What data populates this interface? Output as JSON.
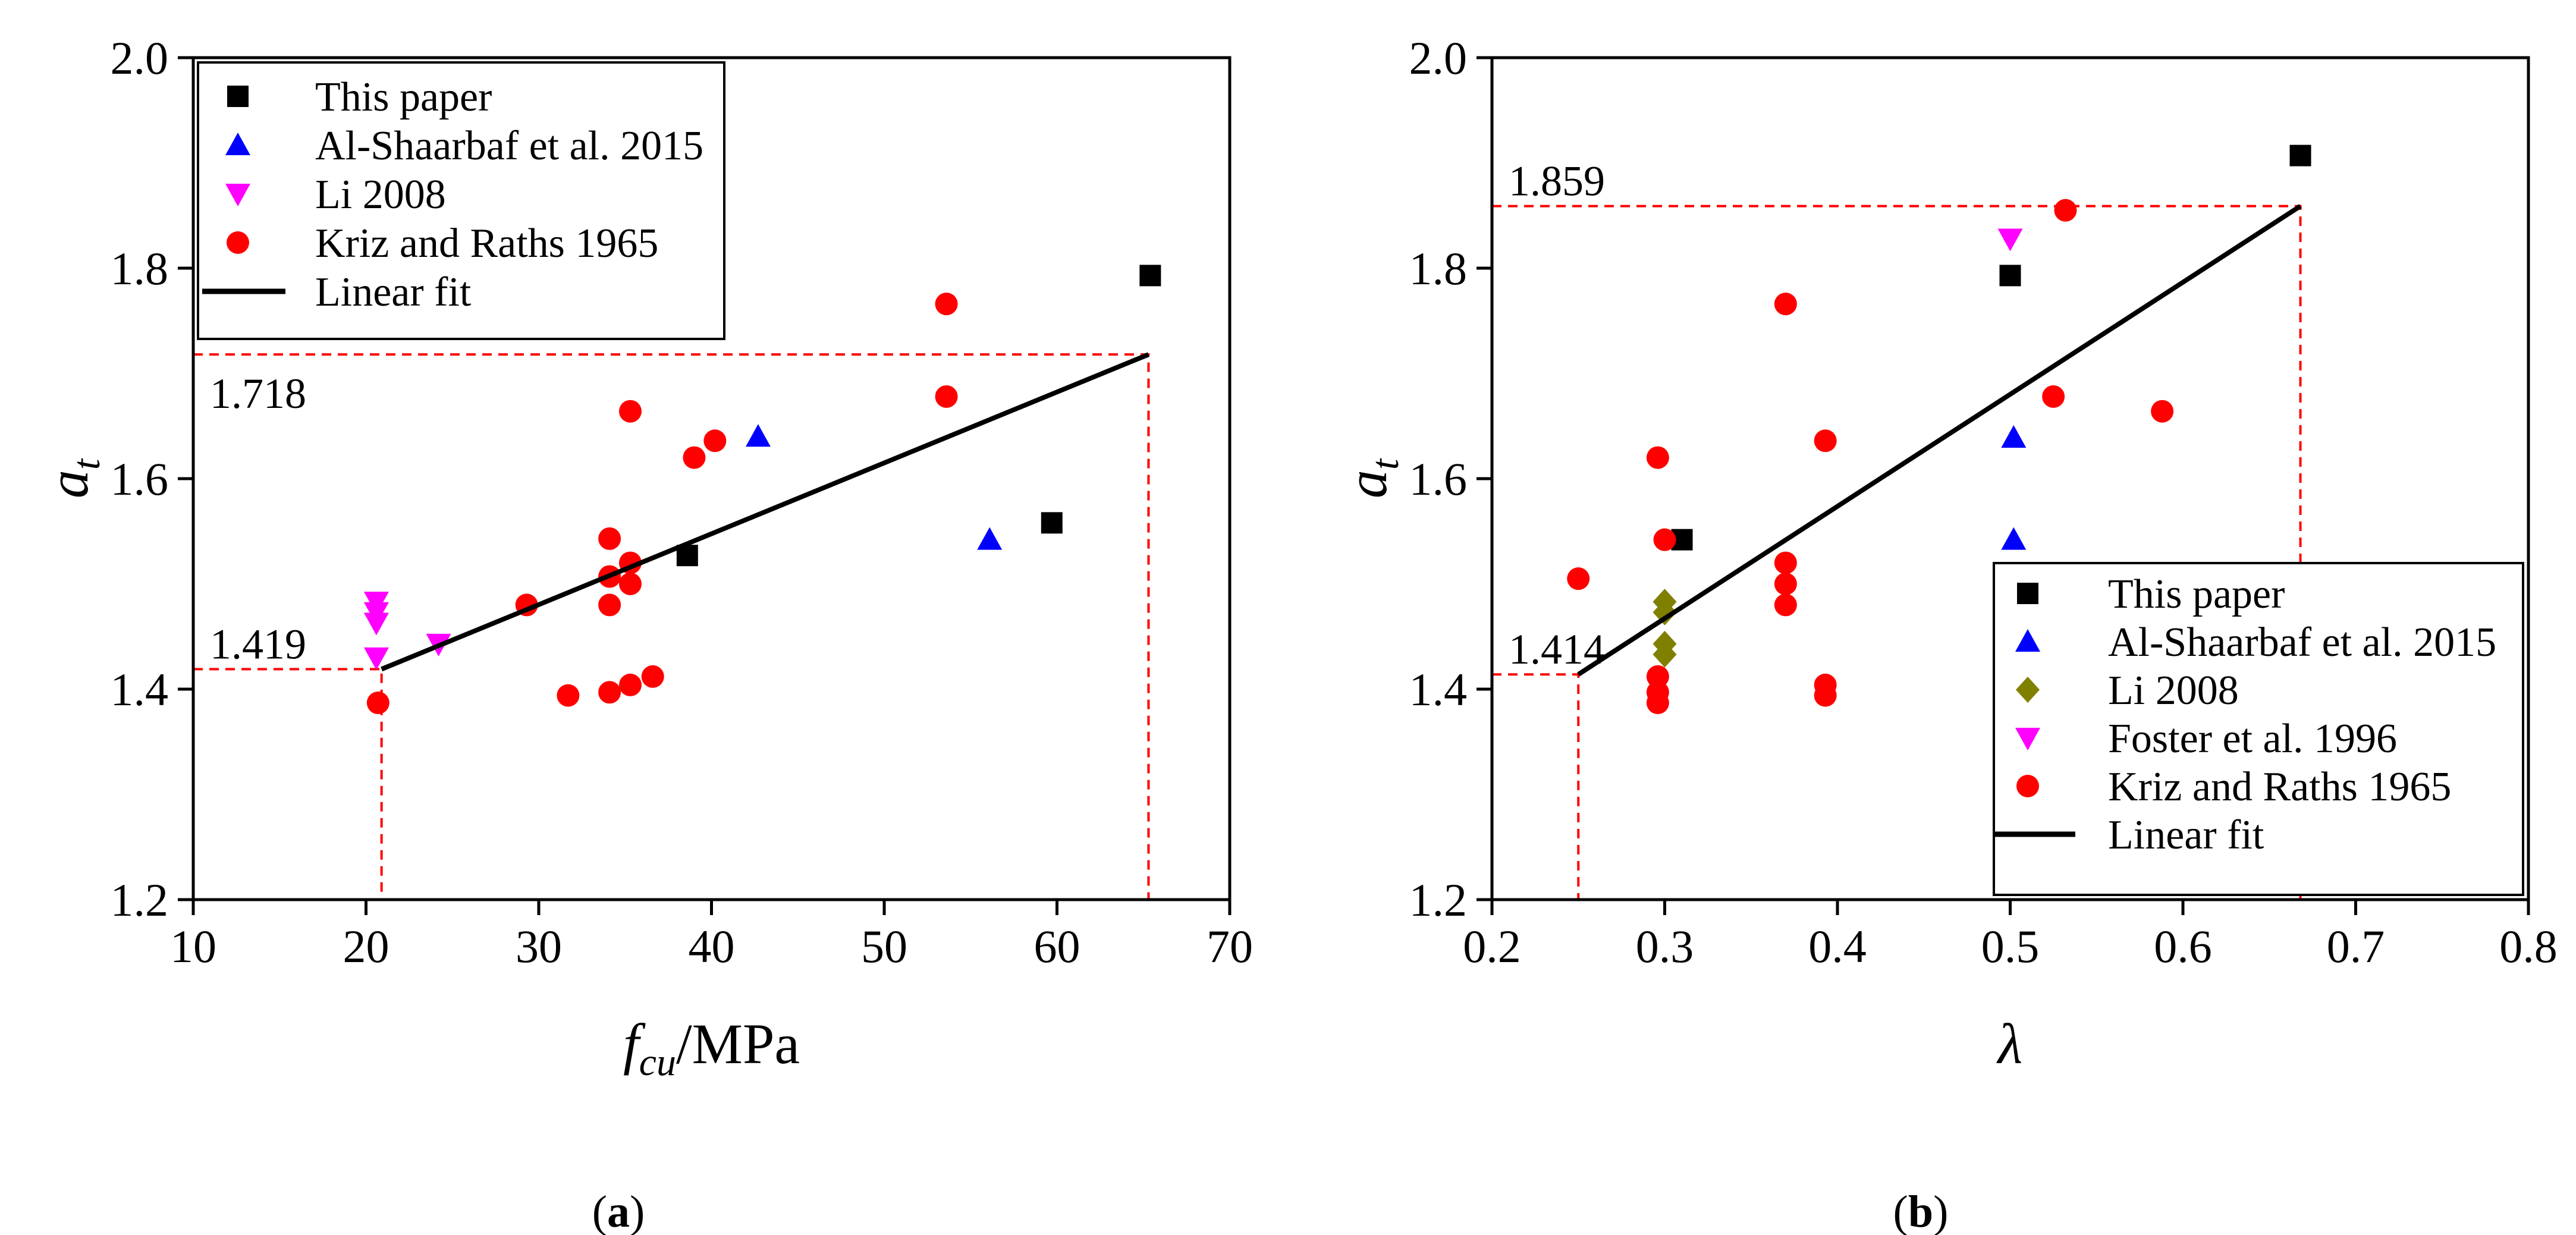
{
  "chart_data": [
    {
      "id": "a",
      "type": "scatter",
      "panel_label": "a",
      "title": "",
      "xlabel": {
        "main": "f",
        "sub": "cu",
        "suffix": "/MPa"
      },
      "ylabel": {
        "main": "a",
        "sub": "t"
      },
      "xlim": [
        10,
        70
      ],
      "ylim": [
        1.2,
        2.0
      ],
      "xticks": [
        10,
        20,
        30,
        40,
        50,
        60,
        70
      ],
      "yticks": [
        1.2,
        1.4,
        1.6,
        1.8,
        2.0
      ],
      "x_tick_decimals": 0,
      "grid": false,
      "legend_position": "top-left",
      "series": [
        {
          "name": "This paper",
          "marker": "square",
          "color": "#000000",
          "points": [
            [
              38.6,
              1.527
            ],
            [
              59.7,
              1.558
            ],
            [
              65.4,
              1.793
            ]
          ]
        },
        {
          "name": "Al-Shaarbaf et al. 2015",
          "marker": "triangle-up",
          "color": "#0000ff",
          "points": [
            [
              42.7,
              1.64
            ],
            [
              56.1,
              1.542
            ]
          ]
        },
        {
          "name": "Li 2008",
          "marker": "triangle-down",
          "color": "#ff00ff",
          "points": [
            [
              20.6,
              1.483
            ],
            [
              20.6,
              1.473
            ],
            [
              20.6,
              1.463
            ],
            [
              20.6,
              1.43
            ],
            [
              24.2,
              1.443
            ]
          ]
        },
        {
          "name": "Kriz and Raths 1965",
          "marker": "circle",
          "color": "#ff0000",
          "points": [
            [
              20.7,
              1.387
            ],
            [
              29.3,
              1.48
            ],
            [
              31.7,
              1.394
            ],
            [
              34.1,
              1.397
            ],
            [
              34.1,
              1.48
            ],
            [
              34.1,
              1.507
            ],
            [
              34.1,
              1.543
            ],
            [
              35.3,
              1.404
            ],
            [
              35.3,
              1.5
            ],
            [
              35.3,
              1.52
            ],
            [
              35.3,
              1.664
            ],
            [
              36.6,
              1.412
            ],
            [
              39.0,
              1.62
            ],
            [
              40.2,
              1.636
            ],
            [
              53.6,
              1.678
            ],
            [
              53.6,
              1.766
            ]
          ]
        }
      ],
      "fit": {
        "name": "Linear fit",
        "x": [
          20.9,
          65.3
        ],
        "y": [
          1.419,
          1.718
        ],
        "color": "#000000"
      },
      "annotations": [
        {
          "text": "1.718",
          "value": 1.718,
          "x_ref": 65.3
        },
        {
          "text": "1.419",
          "value": 1.419,
          "x_ref": 20.9
        }
      ]
    },
    {
      "id": "b",
      "type": "scatter",
      "panel_label": "b",
      "title": "",
      "xlabel": {
        "main": "λ",
        "sub": "",
        "suffix": ""
      },
      "ylabel": {
        "main": "a",
        "sub": "t"
      },
      "xlim": [
        0.2,
        0.8
      ],
      "ylim": [
        1.2,
        2.0
      ],
      "xticks": [
        0.2,
        0.3,
        0.4,
        0.5,
        0.6,
        0.7,
        0.8
      ],
      "yticks": [
        1.2,
        1.4,
        1.6,
        1.8,
        2.0
      ],
      "x_tick_decimals": 1,
      "grid": false,
      "legend_position": "bottom-right",
      "series": [
        {
          "name": "This paper",
          "marker": "square",
          "color": "#000000",
          "points": [
            [
              0.31,
              1.542
            ],
            [
              0.5,
              1.793
            ],
            [
              0.668,
              1.907
            ]
          ]
        },
        {
          "name": "Al-Shaarbaf et al. 2015",
          "marker": "triangle-up",
          "color": "#0000ff",
          "points": [
            [
              0.502,
              1.639
            ],
            [
              0.502,
              1.542
            ]
          ]
        },
        {
          "name": "Li 2008",
          "marker": "diamond",
          "color": "#808000",
          "points": [
            [
              0.3,
              1.483
            ],
            [
              0.3,
              1.473
            ],
            [
              0.3,
              1.443
            ],
            [
              0.3,
              1.433
            ]
          ]
        },
        {
          "name": "Foster et al. 1996",
          "marker": "triangle-down",
          "color": "#ff00ff",
          "points": [
            [
              0.5,
              1.828
            ]
          ]
        },
        {
          "name": "Kriz and Raths 1965",
          "marker": "circle",
          "color": "#ff0000",
          "points": [
            [
              0.25,
              1.505
            ],
            [
              0.296,
              1.62
            ],
            [
              0.3,
              1.542
            ],
            [
              0.296,
              1.412
            ],
            [
              0.296,
              1.397
            ],
            [
              0.296,
              1.387
            ],
            [
              0.37,
              1.766
            ],
            [
              0.37,
              1.52
            ],
            [
              0.37,
              1.5
            ],
            [
              0.37,
              1.48
            ],
            [
              0.393,
              1.636
            ],
            [
              0.393,
              1.404
            ],
            [
              0.393,
              1.394
            ],
            [
              0.525,
              1.678
            ],
            [
              0.532,
              1.855
            ],
            [
              0.588,
              1.664
            ]
          ]
        }
      ],
      "fit": {
        "name": "Linear fit",
        "x": [
          0.25,
          0.668
        ],
        "y": [
          1.414,
          1.859
        ],
        "color": "#000000"
      },
      "annotations": [
        {
          "text": "1.859",
          "value": 1.859,
          "x_ref": 0.668
        },
        {
          "text": "1.414",
          "value": 1.414,
          "x_ref": 0.25
        }
      ]
    }
  ]
}
